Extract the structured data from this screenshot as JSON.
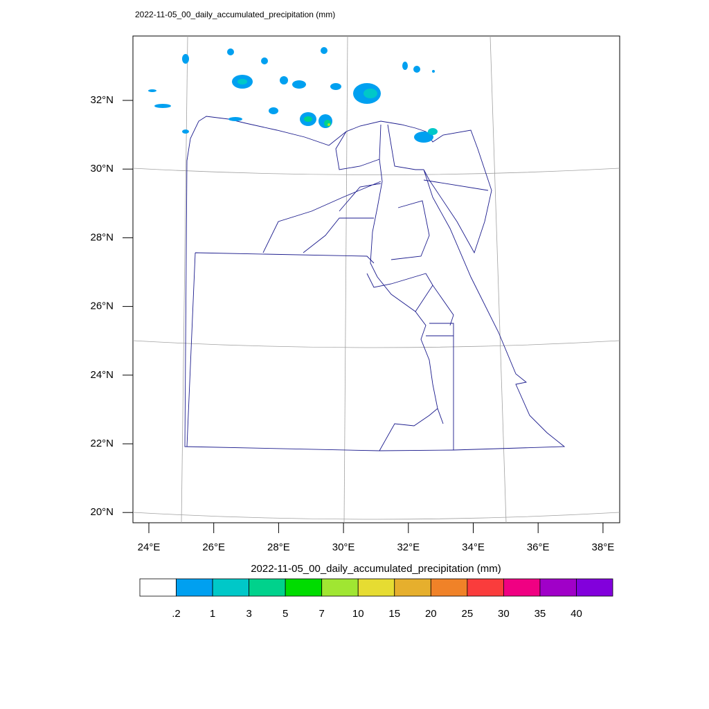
{
  "map": {
    "title": "2022-11-05_00_daily_accumulated_precipitation   (mm)",
    "lat_labels": [
      "32°N",
      "30°N",
      "28°N",
      "26°N",
      "24°N",
      "22°N",
      "20°N"
    ],
    "lon_labels": [
      "24°E",
      "26°E",
      "28°E",
      "30°E",
      "32°E",
      "34°E",
      "36°E",
      "38°E"
    ]
  },
  "colorbar": {
    "title": "2022-11-05_00_daily_accumulated_precipitation  (mm)",
    "labels": [
      ".2",
      "1",
      "3",
      "5",
      "7",
      "10",
      "15",
      "20",
      "25",
      "30",
      "35",
      "40"
    ],
    "colors": [
      "#ffffff",
      "#00a0f0",
      "#00c8c8",
      "#00d28c",
      "#00dc00",
      "#a0e632",
      "#e6dc32",
      "#e6af2d",
      "#f08228",
      "#fa3c3c",
      "#f00082",
      "#a000c8",
      "#8200dc"
    ]
  }
}
